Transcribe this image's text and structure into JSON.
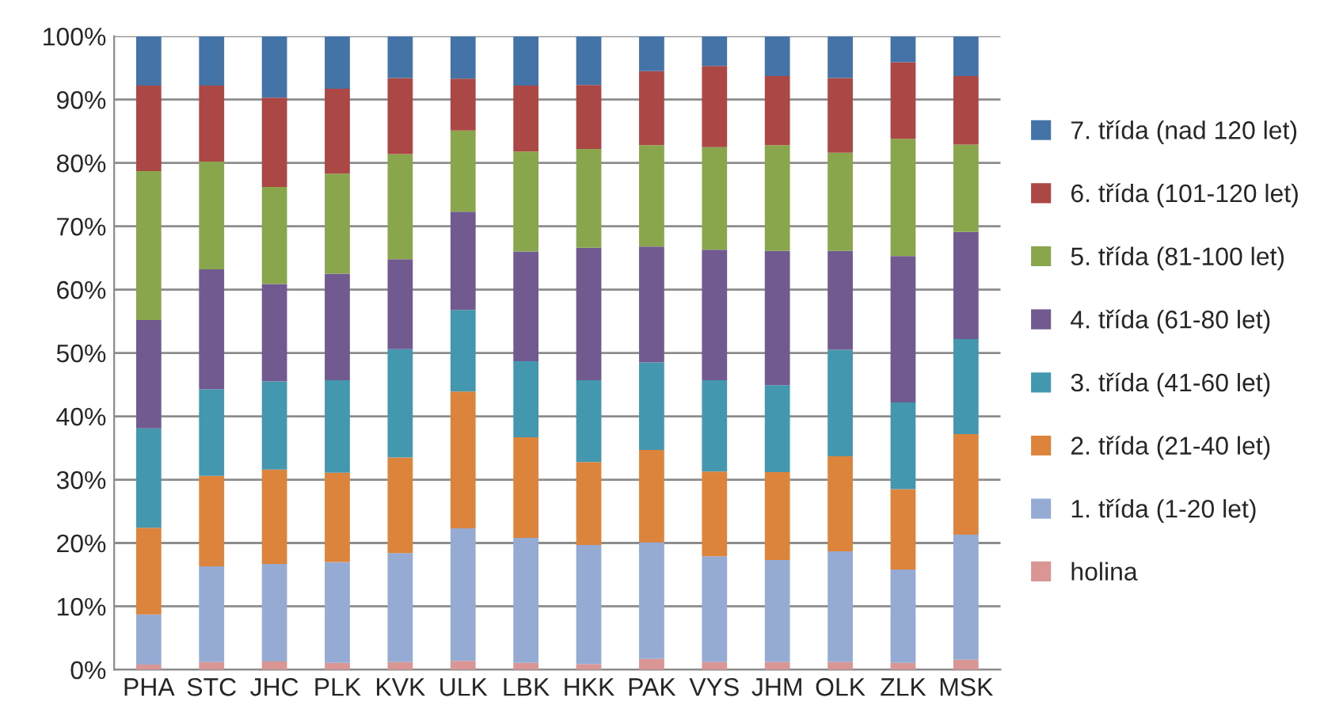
{
  "chart_data": {
    "type": "bar",
    "stacked": true,
    "categories": [
      "PHA",
      "STC",
      "JHC",
      "PLK",
      "KVK",
      "ULK",
      "LBK",
      "HKK",
      "PAK",
      "VYS",
      "JHM",
      "OLK",
      "ZLK",
      "MSK"
    ],
    "series": [
      {
        "name": "holina",
        "color": "#d99694",
        "values": [
          0.8,
          1.2,
          1.3,
          1.1,
          1.2,
          1.4,
          1.1,
          0.9,
          1.7,
          1.2,
          1.2,
          1.2,
          1.1,
          1.6
        ]
      },
      {
        "name": "1. třída (1-20 let)",
        "color": "#95abd3",
        "values": [
          7.9,
          15.1,
          15.4,
          15.9,
          17.2,
          20.9,
          19.7,
          18.8,
          18.4,
          16.7,
          16.1,
          17.5,
          14.7,
          19.7
        ]
      },
      {
        "name": "2. třída (21-40 let)",
        "color": "#dd843c",
        "values": [
          13.7,
          14.3,
          14.9,
          14.1,
          15.1,
          21.6,
          15.9,
          13.1,
          14.6,
          13.4,
          13.9,
          15.0,
          12.7,
          15.9
        ]
      },
      {
        "name": "3. třída (41-60 let)",
        "color": "#4398b0",
        "values": [
          15.7,
          13.7,
          13.9,
          14.6,
          17.1,
          12.9,
          12.0,
          12.9,
          13.8,
          14.4,
          13.7,
          16.8,
          13.7,
          15.0
        ]
      },
      {
        "name": "4. třída (61-80 let)",
        "color": "#715a90",
        "values": [
          17.1,
          18.9,
          15.4,
          16.8,
          14.2,
          15.5,
          17.3,
          20.9,
          18.3,
          20.6,
          21.2,
          15.6,
          23.1,
          16.9
        ]
      },
      {
        "name": "5. třída (81-100 let)",
        "color": "#8aa64c",
        "values": [
          23.5,
          17.0,
          15.3,
          15.8,
          16.6,
          12.8,
          15.8,
          15.6,
          16.0,
          16.2,
          16.7,
          15.5,
          18.5,
          13.8
        ]
      },
      {
        "name": "6. třída (101-120 let)",
        "color": "#ab4744",
        "values": [
          13.5,
          12.0,
          14.1,
          13.4,
          12.0,
          8.2,
          10.4,
          10.1,
          11.7,
          12.8,
          10.9,
          11.8,
          12.1,
          10.8
        ]
      },
      {
        "name": "7. třída (nad 120 let)",
        "color": "#4473a8",
        "values": [
          7.8,
          7.8,
          9.7,
          8.3,
          6.6,
          6.7,
          7.8,
          7.7,
          5.5,
          4.7,
          6.3,
          6.6,
          4.1,
          6.3
        ]
      }
    ],
    "ylim": [
      0,
      100
    ],
    "yticks": [
      {
        "value": 0,
        "label": "0%"
      },
      {
        "value": 10,
        "label": "10%"
      },
      {
        "value": 20,
        "label": "20%"
      },
      {
        "value": 30,
        "label": "30%"
      },
      {
        "value": 40,
        "label": "40%"
      },
      {
        "value": 50,
        "label": "50%"
      },
      {
        "value": 60,
        "label": "60%"
      },
      {
        "value": 70,
        "label": "70%"
      },
      {
        "value": 80,
        "label": "80%"
      },
      {
        "value": 90,
        "label": "90%"
      },
      {
        "value": 100,
        "label": "100%"
      }
    ],
    "grid": "y",
    "legend": "right"
  }
}
